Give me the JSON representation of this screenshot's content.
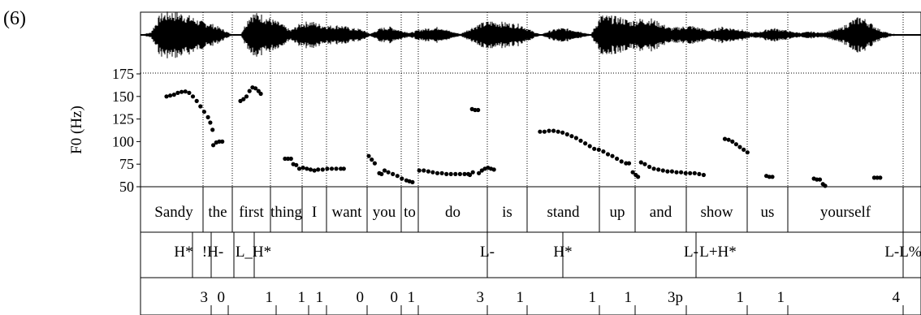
{
  "figure_label": "(6)",
  "chart_data": {
    "type": "scatter",
    "ylabel": "F0 (Hz)",
    "ylim": [
      50,
      175
    ],
    "yticks": [
      50,
      75,
      100,
      125,
      150,
      175
    ],
    "grid": "dotted vertical lines at word boundaries",
    "waveform": {
      "envelope": [
        0.02,
        0.1,
        0.9,
        1.0,
        0.95,
        0.8,
        0.6,
        0.5,
        0.3,
        0.05,
        0.02,
        0.95,
        0.9,
        0.7,
        0.5,
        0.2,
        0.5,
        0.6,
        0.45,
        0.4,
        0.42,
        0.3,
        0.25,
        0.05,
        0.3,
        0.35,
        0.2,
        0.1,
        0.25,
        0.3,
        0.35,
        0.15,
        0.05,
        0.3,
        0.5,
        0.6,
        0.55,
        0.5,
        0.45,
        0.2,
        0.02,
        0.2,
        0.3,
        0.25,
        0.15,
        0.02,
        0.85,
        0.8,
        0.75,
        0.6,
        0.7,
        0.7,
        0.5,
        0.3,
        0.35,
        0.4,
        0.3,
        0.2,
        0.35,
        0.3,
        0.25,
        0.1,
        0.15,
        0.3,
        0.25,
        0.15,
        0.1,
        0.15,
        0.1,
        0.2,
        0.3,
        0.6,
        0.8,
        0.5,
        0.2,
        0.05,
        0.02,
        0.02,
        0.02
      ]
    },
    "f0_series": [
      {
        "points": [
          [
            0.0,
            150
          ],
          [
            0.005,
            151
          ],
          [
            0.01,
            152
          ],
          [
            0.015,
            154
          ],
          [
            0.02,
            155
          ],
          [
            0.025,
            155.5
          ],
          [
            0.03,
            154
          ],
          [
            0.035,
            150
          ],
          [
            0.04,
            145
          ],
          [
            0.045,
            139
          ],
          [
            0.05,
            133
          ],
          [
            0.055,
            127
          ],
          [
            0.058,
            121
          ],
          [
            0.061,
            113
          ]
        ]
      },
      {
        "points": [
          [
            0.062,
            96
          ],
          [
            0.066,
            99
          ],
          [
            0.07,
            100
          ],
          [
            0.074,
            100
          ]
        ]
      },
      {
        "points": [
          [
            0.098,
            145
          ],
          [
            0.102,
            147
          ],
          [
            0.106,
            150
          ],
          [
            0.11,
            156
          ],
          [
            0.114,
            160
          ],
          [
            0.118,
            159
          ],
          [
            0.122,
            156
          ],
          [
            0.125,
            153
          ]
        ]
      },
      {
        "points": [
          [
            0.157,
            81
          ],
          [
            0.161,
            81
          ],
          [
            0.165,
            81
          ]
        ]
      },
      {
        "points": [
          [
            0.168,
            75
          ],
          [
            0.172,
            74
          ]
        ]
      },
      {
        "points": [
          [
            0.176,
            70
          ],
          [
            0.181,
            71
          ],
          [
            0.186,
            70
          ],
          [
            0.191,
            69
          ],
          [
            0.196,
            68
          ],
          [
            0.201,
            69
          ],
          [
            0.207,
            69
          ],
          [
            0.213,
            70
          ],
          [
            0.219,
            70
          ],
          [
            0.225,
            70
          ],
          [
            0.231,
            70
          ],
          [
            0.235,
            70
          ]
        ]
      },
      {
        "points": [
          [
            0.268,
            84
          ],
          [
            0.272,
            80
          ],
          [
            0.276,
            76
          ]
        ]
      },
      {
        "points": [
          [
            0.282,
            65
          ],
          [
            0.285,
            64
          ]
        ]
      },
      {
        "points": [
          [
            0.289,
            68
          ],
          [
            0.294,
            66
          ],
          [
            0.3,
            64
          ],
          [
            0.306,
            62
          ],
          [
            0.312,
            59
          ],
          [
            0.318,
            57
          ],
          [
            0.322,
            56
          ],
          [
            0.326,
            55
          ]
        ]
      },
      {
        "points": [
          [
            0.335,
            68
          ],
          [
            0.341,
            68
          ],
          [
            0.347,
            67
          ],
          [
            0.353,
            66
          ],
          [
            0.359,
            65
          ],
          [
            0.365,
            65
          ],
          [
            0.371,
            64
          ],
          [
            0.377,
            64
          ],
          [
            0.383,
            64
          ],
          [
            0.389,
            64
          ],
          [
            0.395,
            64
          ],
          [
            0.4,
            64
          ]
        ]
      },
      {
        "points": [
          [
            0.402,
            63
          ],
          [
            0.406,
            66
          ]
        ]
      },
      {
        "points": [
          [
            0.405,
            136
          ],
          [
            0.409,
            135
          ],
          [
            0.413,
            135
          ]
        ]
      },
      {
        "points": [
          [
            0.414,
            65
          ],
          [
            0.418,
            68
          ],
          [
            0.422,
            70
          ],
          [
            0.426,
            71
          ],
          [
            0.43,
            70
          ],
          [
            0.434,
            69
          ]
        ]
      },
      {
        "points": [
          [
            0.495,
            111
          ],
          [
            0.501,
            111
          ],
          [
            0.507,
            112
          ],
          [
            0.513,
            112
          ],
          [
            0.519,
            111
          ],
          [
            0.525,
            110
          ],
          [
            0.531,
            108
          ],
          [
            0.537,
            106
          ],
          [
            0.543,
            104
          ],
          [
            0.549,
            101
          ],
          [
            0.555,
            98
          ],
          [
            0.561,
            95
          ],
          [
            0.567,
            92
          ],
          [
            0.573,
            91
          ],
          [
            0.579,
            89
          ],
          [
            0.585,
            86
          ],
          [
            0.591,
            84
          ],
          [
            0.597,
            81
          ],
          [
            0.603,
            78
          ],
          [
            0.609,
            76
          ],
          [
            0.613,
            76
          ]
        ]
      },
      {
        "points": [
          [
            0.618,
            66
          ],
          [
            0.622,
            63
          ],
          [
            0.625,
            61
          ]
        ]
      },
      {
        "points": [
          [
            0.629,
            77
          ],
          [
            0.634,
            75
          ],
          [
            0.64,
            72
          ],
          [
            0.646,
            70
          ],
          [
            0.652,
            69
          ],
          [
            0.658,
            68
          ],
          [
            0.664,
            67
          ],
          [
            0.67,
            67
          ],
          [
            0.676,
            66
          ],
          [
            0.682,
            66
          ],
          [
            0.688,
            65
          ],
          [
            0.694,
            65
          ],
          [
            0.7,
            65
          ],
          [
            0.706,
            64
          ],
          [
            0.712,
            63
          ]
        ]
      },
      {
        "points": [
          [
            0.74,
            103
          ],
          [
            0.745,
            102
          ],
          [
            0.75,
            100
          ],
          [
            0.755,
            97
          ],
          [
            0.76,
            94
          ],
          [
            0.765,
            91
          ],
          [
            0.77,
            88
          ]
        ]
      },
      {
        "points": [
          [
            0.795,
            62
          ],
          [
            0.799,
            61
          ],
          [
            0.803,
            61
          ]
        ]
      },
      {
        "points": [
          [
            0.858,
            59
          ],
          [
            0.862,
            58
          ],
          [
            0.866,
            58
          ]
        ]
      },
      {
        "points": [
          [
            0.87,
            53
          ],
          [
            0.873,
            51
          ]
        ]
      },
      {
        "points": [
          [
            0.938,
            60
          ],
          [
            0.942,
            60
          ],
          [
            0.946,
            60
          ]
        ]
      }
    ],
    "words": [
      "Sandy",
      "the",
      "first",
      "thing",
      "I",
      "want",
      "you",
      "to",
      "do",
      "is",
      "stand",
      "up",
      "and",
      "show",
      "us",
      "yourself"
    ],
    "tones": [
      "H*",
      "!H-",
      "L_H*",
      "L-",
      "H*",
      "L-",
      "L+H*",
      "L-L%"
    ],
    "break_indices": [
      "3",
      "0",
      "1",
      "1",
      "1",
      "0",
      "0",
      "1",
      "3",
      "1",
      "1",
      "1",
      "3p",
      "1",
      "1",
      "4"
    ]
  }
}
